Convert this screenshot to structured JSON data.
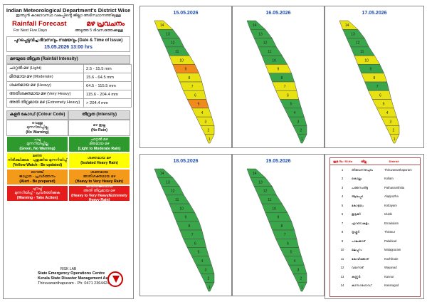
{
  "header": {
    "title_en": "Indian Meteorological Department's District Wise",
    "title_ml": "ഇന്ത്യൻ കാലാവസ്ഥ വകുപ്പിൻ്റെ ജില്ലാ അടിസ്ഥാനത്തിലുള്ള",
    "forecast_en": "Rainfall Forecast",
    "forecast_ml": "മഴ പ്രവചനം",
    "next_days_en": "For Next Five Days",
    "next_days_ml": "അടുത്ത 5 ദിവസത്തേക്കുള്ള",
    "issue_label": "പുറപ്പെടുവിച്ച ദിവസവും സമയവും (Date & Time of Issue)",
    "issue_value": "15.05.2026   13:00 hrs"
  },
  "intensity": {
    "title": "മഴയുടെ തീവ്രത (Rainfall Intensity)",
    "rows": [
      {
        "label": "ചാറ്റൽ മഴ (Light)",
        "value": "2.5 - 15.5 mm"
      },
      {
        "label": "മിതമായ മഴ (Moderate)",
        "value": "15.6 - 64.5 mm"
      },
      {
        "label": "ശക്തമായ മഴ (Heavy)",
        "value": "64.5 - 115.5 mm"
      },
      {
        "label": "അതിശക്തമായ മഴ (Very Heavy)",
        "value": "115.6 - 204.4 mm"
      },
      {
        "label": "അതി തീവ്രമായ മഴ (Extremely Heavy)",
        "value": "> 204.4 mm"
      }
    ]
  },
  "color_codes": {
    "left_header": "കളർ കോഡ് (Colour Code)",
    "right_header": "തീവ്രത (Intensity)",
    "rows": [
      {
        "color": "#ffffff",
        "left1": "വെള്ള",
        "left2": "മുന്നറിയിപ്പില്ല",
        "left3": "(No Warning)",
        "right1": "മഴ ഇല്ല",
        "right2": "(No Rain)",
        "right3": ""
      },
      {
        "color": "#2e9a2e",
        "left1": "പച്ച",
        "left2": "മുന്നറിയിപ്പില്ല",
        "left3": "(Green, No Warning)",
        "right1": "ചാറ്റൽ മഴ",
        "right2": "മിതമായ മഴ",
        "right3": "(Light to Moderate Rain)"
      },
      {
        "color": "#ffff00",
        "left1": "മഞ്ഞ",
        "left2": "നിരീക്ഷിക്കുക - പുതുക്കിയ മുന്നറിയിപ്പ്",
        "left3": "(Yellow Watch - Be updated)",
        "right1": "ശക്തമായ മഴ",
        "right2": "(Isolated Heavy Rain)",
        "right3": ""
      },
      {
        "color": "#f39a1a",
        "left1": "ഓറഞ്ച്",
        "left2": "ജാഗ്രത - പ്രവർത്തനം",
        "left3": "(Alert - Be prepared)",
        "right1": "ശക്തമായ",
        "right2": "അതിശക്തമായ മഴ",
        "right3": "(Heavy to Very Heavy Rain)"
      },
      {
        "color": "#e61b1b",
        "left1": "ചുവപ്പ്",
        "left2": "മുന്നറിയിപ്പ് - പ്രവർത്തിക്കുക",
        "left3": "(Warning - Take Action)",
        "right1": "അതിശക്തമായ",
        "right2": "അതി തീവ്രമായ മഴ",
        "right3": "(Heavy to Very Heavy/Extremely Heavy Rain)"
      }
    ]
  },
  "footer": {
    "risk_lab": "RISK LAB",
    "seoc": "State Emergency Operations Centre",
    "ksdma": "Kerala State Disaster Management Authority",
    "contact": "Thiruvananthapuram - Ph: 0471 2364424"
  },
  "maps": [
    {
      "date": "15.05.2026",
      "colors": [
        "#e9e213",
        "#e9e213",
        "#e9e213",
        "#e9e213",
        "#f08a1b",
        "#e9e213",
        "#e9e213",
        "#e9e213",
        "#f08a1b",
        "#e9e213",
        "#3aa64a",
        "#3aa64a",
        "#3aa64a",
        "#e9e213"
      ]
    },
    {
      "date": "16.05.2026",
      "colors": [
        "#3aa64a",
        "#3aa64a",
        "#3aa64a",
        "#3aa64a",
        "#3aa64a",
        "#e9e213",
        "#e9e213",
        "#3aa64a",
        "#e9e213",
        "#3aa64a",
        "#3aa64a",
        "#3aa64a",
        "#3aa64a",
        "#3aa64a"
      ]
    },
    {
      "date": "17.05.2026",
      "colors": [
        "#e9e213",
        "#e9e213",
        "#e9e213",
        "#e9e213",
        "#e9e213",
        "#e9e213",
        "#3aa64a",
        "#e9e213",
        "#3aa64a",
        "#e9e213",
        "#3aa64a",
        "#3aa64a",
        "#3aa64a",
        "#e9e213"
      ]
    },
    {
      "date": "18.05.2026",
      "colors": [
        "#3aa64a",
        "#3aa64a",
        "#3aa64a",
        "#3aa64a",
        "#3aa64a",
        "#3aa64a",
        "#3aa64a",
        "#3aa64a",
        "#3aa64a",
        "#3aa64a",
        "#3aa64a",
        "#3aa64a",
        "#3aa64a",
        "#3aa64a"
      ]
    },
    {
      "date": "19.05.2026",
      "colors": [
        "#3aa64a",
        "#3aa64a",
        "#3aa64a",
        "#3aa64a",
        "#3aa64a",
        "#3aa64a",
        "#3aa64a",
        "#3aa64a",
        "#3aa64a",
        "#3aa64a",
        "#3aa64a",
        "#3aa64a",
        "#3aa64a",
        "#3aa64a"
      ]
    }
  ],
  "districts": {
    "header_no": "ക്രമ നം / Sl.No",
    "header_ml": "ജില്ല",
    "header_en": "District",
    "rows": [
      {
        "no": "1",
        "ml": "തിരുവനന്തപുരം",
        "en": "Thiruvananthapuram"
      },
      {
        "no": "2",
        "ml": "കൊല്ലം",
        "en": "Kollam"
      },
      {
        "no": "3",
        "ml": "പത്തനംതിട്ട",
        "en": "Pathanamthitta"
      },
      {
        "no": "4",
        "ml": "ആലപ്പുഴ",
        "en": "Alappuzha"
      },
      {
        "no": "5",
        "ml": "കോട്ടയം",
        "en": "Kottayam"
      },
      {
        "no": "6",
        "ml": "ഇടുക്കി",
        "en": "Idukki"
      },
      {
        "no": "7",
        "ml": "എറണാകുളം",
        "en": "Ernakulam"
      },
      {
        "no": "8",
        "ml": "തൃശ്ശൂർ",
        "en": "Thrissur"
      },
      {
        "no": "9",
        "ml": "പാലക്കാട്",
        "en": "Palakkad"
      },
      {
        "no": "10",
        "ml": "മലപ്പുറം",
        "en": "Malappuram"
      },
      {
        "no": "11",
        "ml": "കോഴിക്കോട്",
        "en": "Kozhikode"
      },
      {
        "no": "12",
        "ml": "വയനാട്",
        "en": "Wayanad"
      },
      {
        "no": "13",
        "ml": "കണ്ണൂർ",
        "en": "Kannur"
      },
      {
        "no": "14",
        "ml": "കാസറഗോഡ്",
        "en": "Kasaragod"
      }
    ]
  }
}
